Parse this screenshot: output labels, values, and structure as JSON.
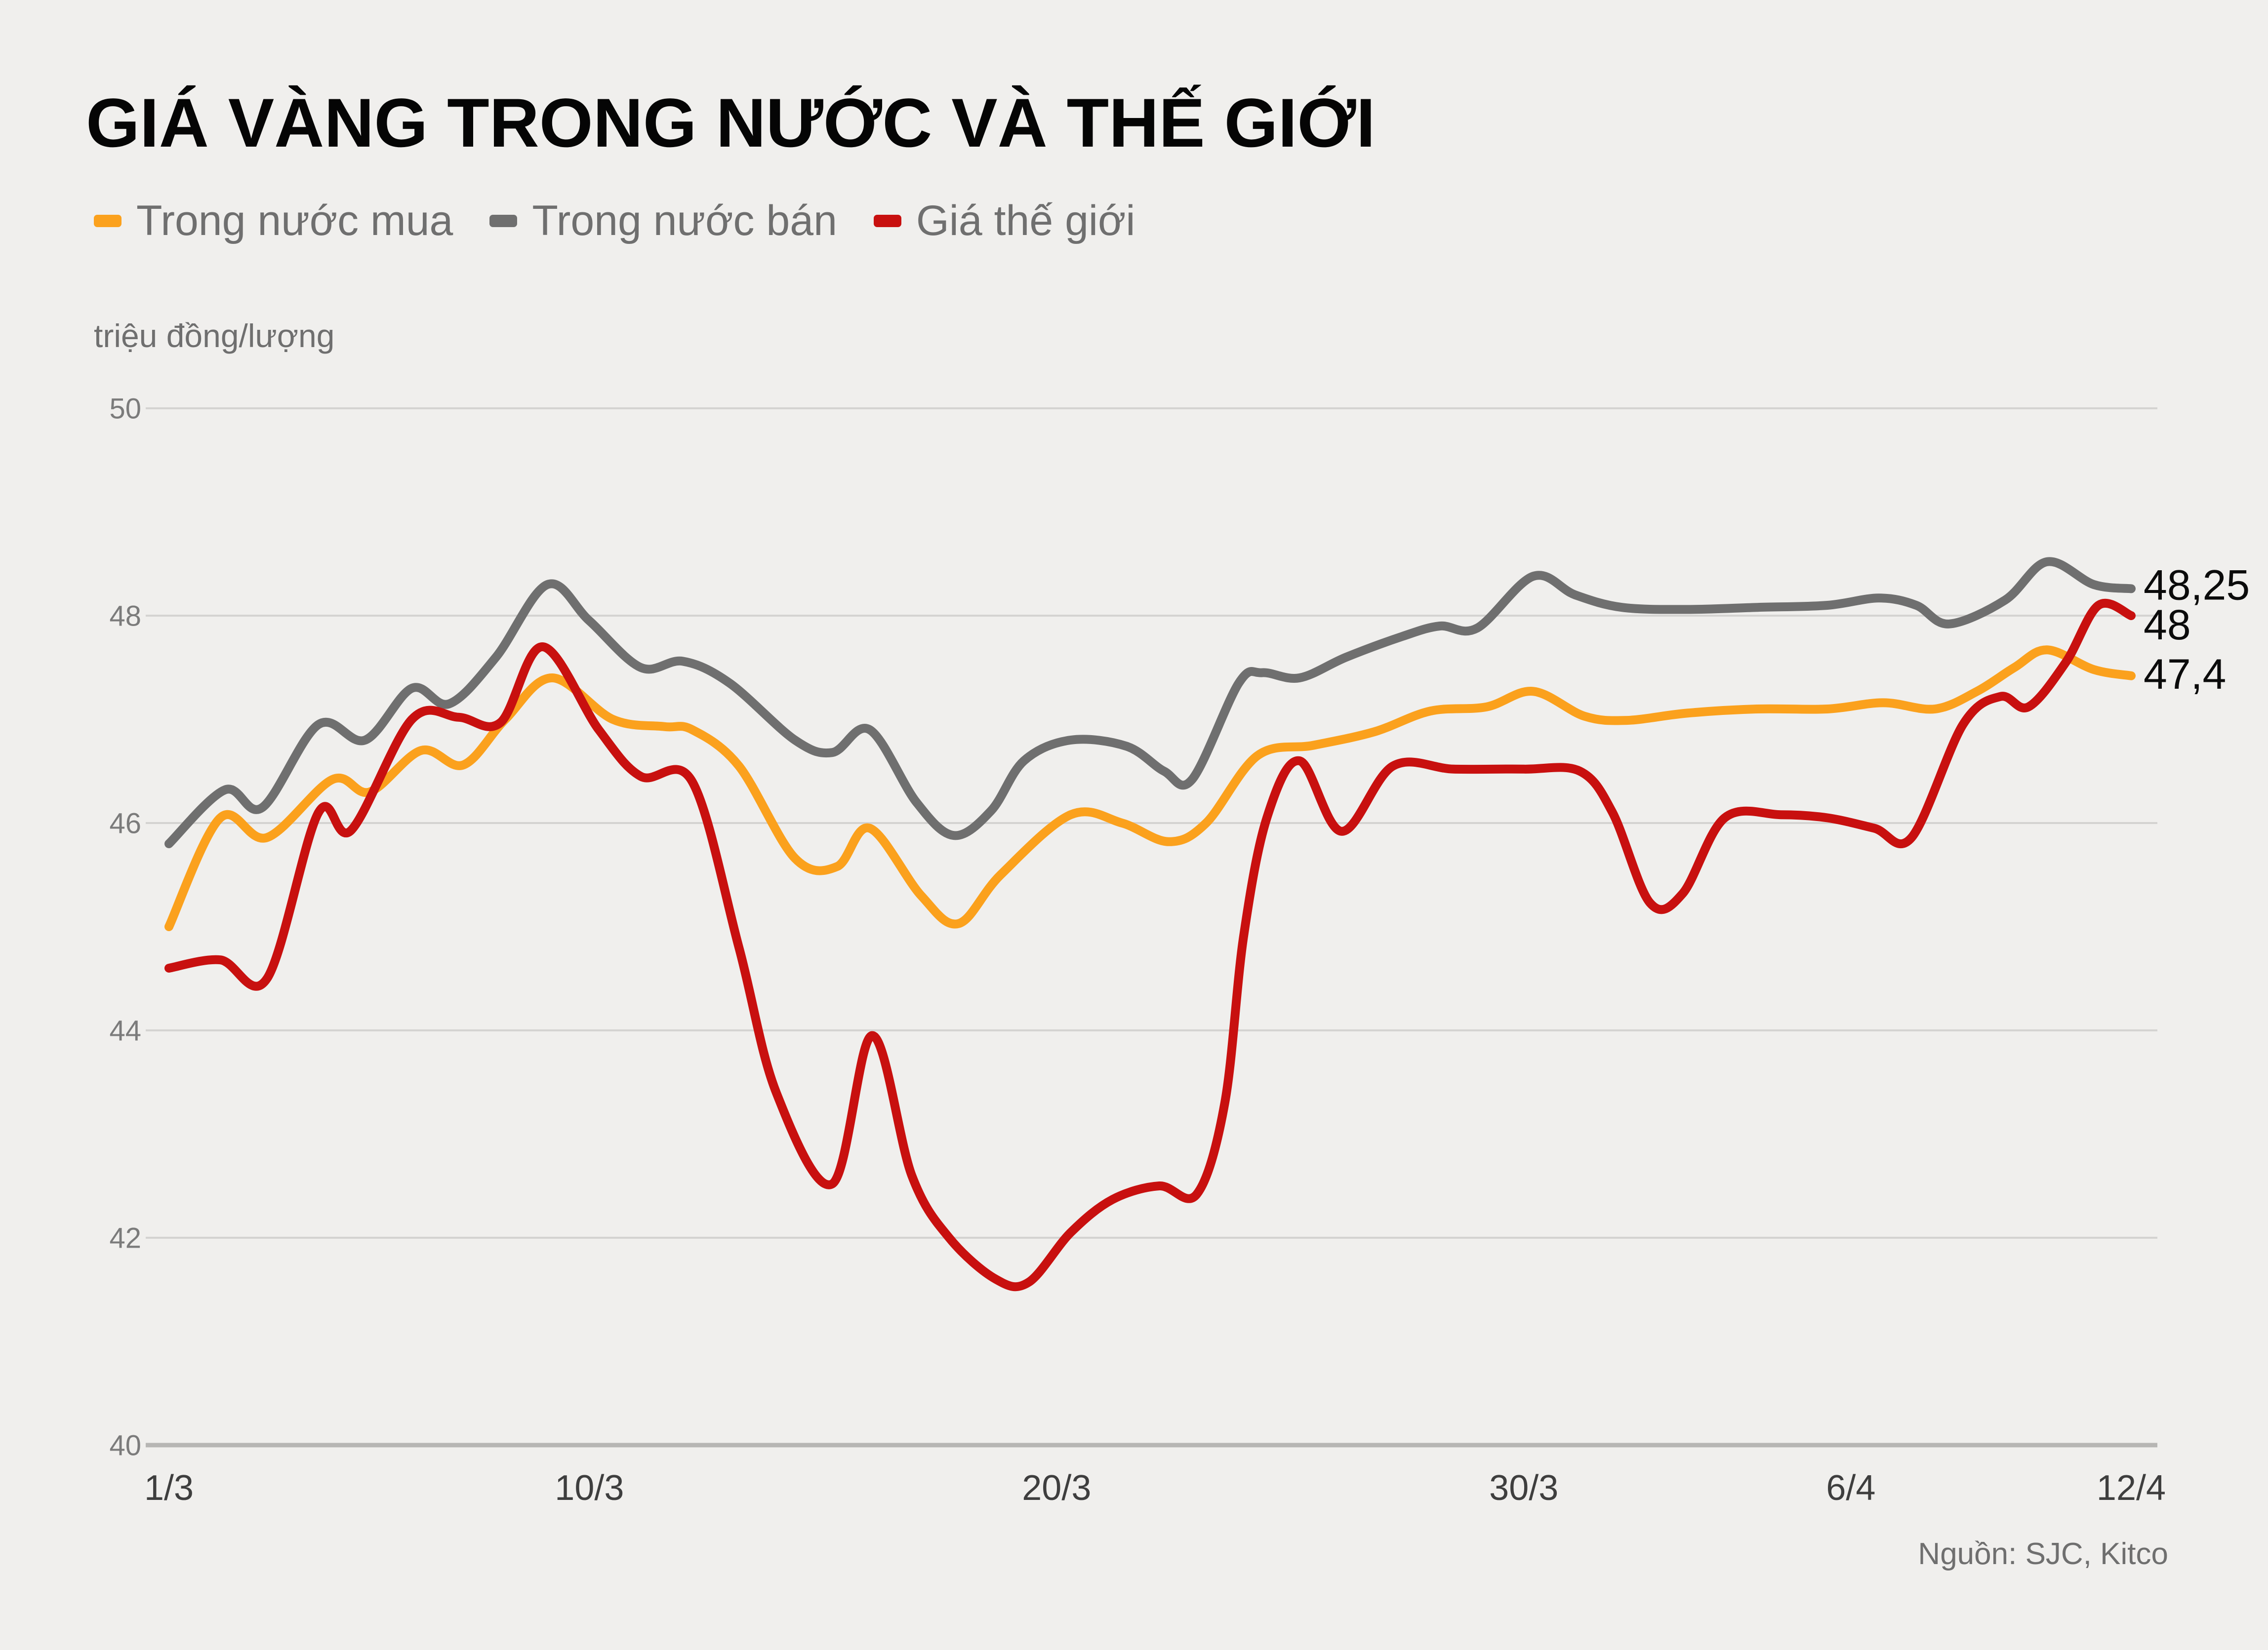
{
  "page": {
    "title": "GIÁ VÀNG TRONG NƯỚC VÀ THẾ GIỚI",
    "unit_label": "triệu đồng/lượng",
    "source": "Nguồn: SJC, Kitco",
    "background_color": "#F0EFED"
  },
  "legend": [
    {
      "label": "Trong nước mua",
      "color": "#FBA11D"
    },
    {
      "label": "Trong nước bán",
      "color": "#6F6F6F"
    },
    {
      "label": "Giá thế giới",
      "color": "#C8100F"
    }
  ],
  "chart_data": {
    "type": "line",
    "title": "GIÁ VÀNG TRONG NƯỚC VÀ THẾ GIỚI",
    "ylabel": "triệu đồng/lượng",
    "xlabel": "",
    "ylim": [
      40,
      50
    ],
    "yticks": [
      50,
      48,
      46,
      44,
      42,
      40
    ],
    "xlim_days": [
      0,
      42
    ],
    "xticks": [
      {
        "label": "1/3",
        "day": 0
      },
      {
        "label": "10/3",
        "day": 9
      },
      {
        "label": "20/3",
        "day": 19
      },
      {
        "label": "30/3",
        "day": 29
      },
      {
        "label": "6/4",
        "day": 36
      },
      {
        "label": "12/4",
        "day": 42
      }
    ],
    "grid": "horizontal",
    "legend_position": "top-left",
    "style": {
      "grid_color": "#D4D3D1",
      "axis_color": "#B7B6B4",
      "line_width": 18
    },
    "series": [
      {
        "id": "domestic-buy",
        "name": "Trong nước mua",
        "color": "#FBA11D",
        "end_label": "47,4",
        "end_value": 47.4,
        "label_dy": -4,
        "z": 1,
        "points": [
          [
            0,
            45.0
          ],
          [
            1.1,
            46.05
          ],
          [
            2.1,
            45.86
          ],
          [
            3.5,
            46.42
          ],
          [
            4.3,
            46.3
          ],
          [
            5.4,
            46.7
          ],
          [
            6.3,
            46.56
          ],
          [
            7.2,
            47.0
          ],
          [
            8.2,
            47.4
          ],
          [
            9.5,
            47.0
          ],
          [
            10.6,
            46.93
          ],
          [
            11.2,
            46.9
          ],
          [
            12.2,
            46.55
          ],
          [
            13.4,
            45.66
          ],
          [
            14.3,
            45.58
          ],
          [
            15,
            45.95
          ],
          [
            16.1,
            45.3
          ],
          [
            16.9,
            45.03
          ],
          [
            17.8,
            45.5
          ],
          [
            19.3,
            46.08
          ],
          [
            20.4,
            46.0
          ],
          [
            21.4,
            45.82
          ],
          [
            22.2,
            46.0
          ],
          [
            23.3,
            46.65
          ],
          [
            24.5,
            46.75
          ],
          [
            25.8,
            46.88
          ],
          [
            27,
            47.08
          ],
          [
            28.2,
            47.12
          ],
          [
            29.2,
            47.27
          ],
          [
            30.3,
            47.03
          ],
          [
            31.2,
            46.99
          ],
          [
            32.5,
            47.06
          ],
          [
            34,
            47.1
          ],
          [
            35.5,
            47.1
          ],
          [
            36.7,
            47.16
          ],
          [
            37.8,
            47.1
          ],
          [
            38.7,
            47.27
          ],
          [
            39.5,
            47.5
          ],
          [
            40.2,
            47.67
          ],
          [
            41.2,
            47.48
          ],
          [
            42,
            47.42
          ]
        ]
      },
      {
        "id": "domestic-sell",
        "name": "Trong nước bán",
        "color": "#6F6F6F",
        "end_label": "48,25",
        "end_value": 48.25,
        "label_dy": -8,
        "z": 0,
        "points": [
          [
            0,
            45.8
          ],
          [
            1.2,
            46.32
          ],
          [
            2,
            46.15
          ],
          [
            3.2,
            46.95
          ],
          [
            4.2,
            46.8
          ],
          [
            5.2,
            47.3
          ],
          [
            6,
            47.15
          ],
          [
            7,
            47.6
          ],
          [
            8.1,
            48.3
          ],
          [
            9,
            47.95
          ],
          [
            10.1,
            47.5
          ],
          [
            11,
            47.56
          ],
          [
            12,
            47.35
          ],
          [
            13.4,
            46.8
          ],
          [
            14.2,
            46.68
          ],
          [
            15,
            46.9
          ],
          [
            16,
            46.2
          ],
          [
            16.8,
            45.88
          ],
          [
            17.6,
            46.12
          ],
          [
            18.3,
            46.6
          ],
          [
            19.3,
            46.8
          ],
          [
            20.5,
            46.74
          ],
          [
            21.3,
            46.5
          ],
          [
            21.9,
            46.42
          ],
          [
            22.9,
            47.35
          ],
          [
            23.4,
            47.45
          ],
          [
            24.2,
            47.4
          ],
          [
            25.2,
            47.6
          ],
          [
            26.4,
            47.8
          ],
          [
            27.2,
            47.9
          ],
          [
            28,
            47.88
          ],
          [
            29.2,
            48.38
          ],
          [
            30.1,
            48.2
          ],
          [
            31.1,
            48.08
          ],
          [
            32.5,
            48.06
          ],
          [
            34,
            48.08
          ],
          [
            35.5,
            48.1
          ],
          [
            36.6,
            48.17
          ],
          [
            37.4,
            48.1
          ],
          [
            38.1,
            47.92
          ],
          [
            39.3,
            48.15
          ],
          [
            40.2,
            48.52
          ],
          [
            41.2,
            48.3
          ],
          [
            42,
            48.26
          ]
        ]
      },
      {
        "id": "world-price",
        "name": "Giá thế giới",
        "color": "#C8100F",
        "end_label": "48",
        "end_value": 48.0,
        "label_dy": 18,
        "z": 2,
        "points": [
          [
            0,
            44.6
          ],
          [
            1.1,
            44.68
          ],
          [
            2.1,
            44.5
          ],
          [
            3.2,
            46.1
          ],
          [
            3.9,
            45.93
          ],
          [
            5.2,
            47.0
          ],
          [
            6.2,
            47.02
          ],
          [
            7.1,
            46.97
          ],
          [
            8,
            47.7
          ],
          [
            9.2,
            46.9
          ],
          [
            10.1,
            46.45
          ],
          [
            11.2,
            46.4
          ],
          [
            12.2,
            44.8
          ],
          [
            13,
            43.4
          ],
          [
            14.2,
            42.52
          ],
          [
            15.05,
            43.95
          ],
          [
            15.9,
            42.6
          ],
          [
            16.7,
            42.0
          ],
          [
            17.7,
            41.6
          ],
          [
            18.4,
            41.57
          ],
          [
            19.3,
            42.05
          ],
          [
            20.2,
            42.37
          ],
          [
            21.2,
            42.5
          ],
          [
            22,
            42.42
          ],
          [
            22.6,
            43.3
          ],
          [
            23,
            44.9
          ],
          [
            23.5,
            46.05
          ],
          [
            24.2,
            46.6
          ],
          [
            25.1,
            45.92
          ],
          [
            26.2,
            46.55
          ],
          [
            27.5,
            46.52
          ],
          [
            29,
            46.52
          ],
          [
            30.2,
            46.5
          ],
          [
            30.9,
            46.1
          ],
          [
            31.7,
            45.23
          ],
          [
            32.4,
            45.32
          ],
          [
            33.3,
            46.05
          ],
          [
            34.5,
            46.08
          ],
          [
            35.5,
            46.05
          ],
          [
            36.5,
            45.95
          ],
          [
            37.3,
            45.86
          ],
          [
            38.4,
            46.95
          ],
          [
            39.2,
            47.22
          ],
          [
            39.8,
            47.12
          ],
          [
            40.6,
            47.55
          ],
          [
            41.3,
            48.1
          ],
          [
            42,
            48.0
          ]
        ]
      }
    ]
  }
}
